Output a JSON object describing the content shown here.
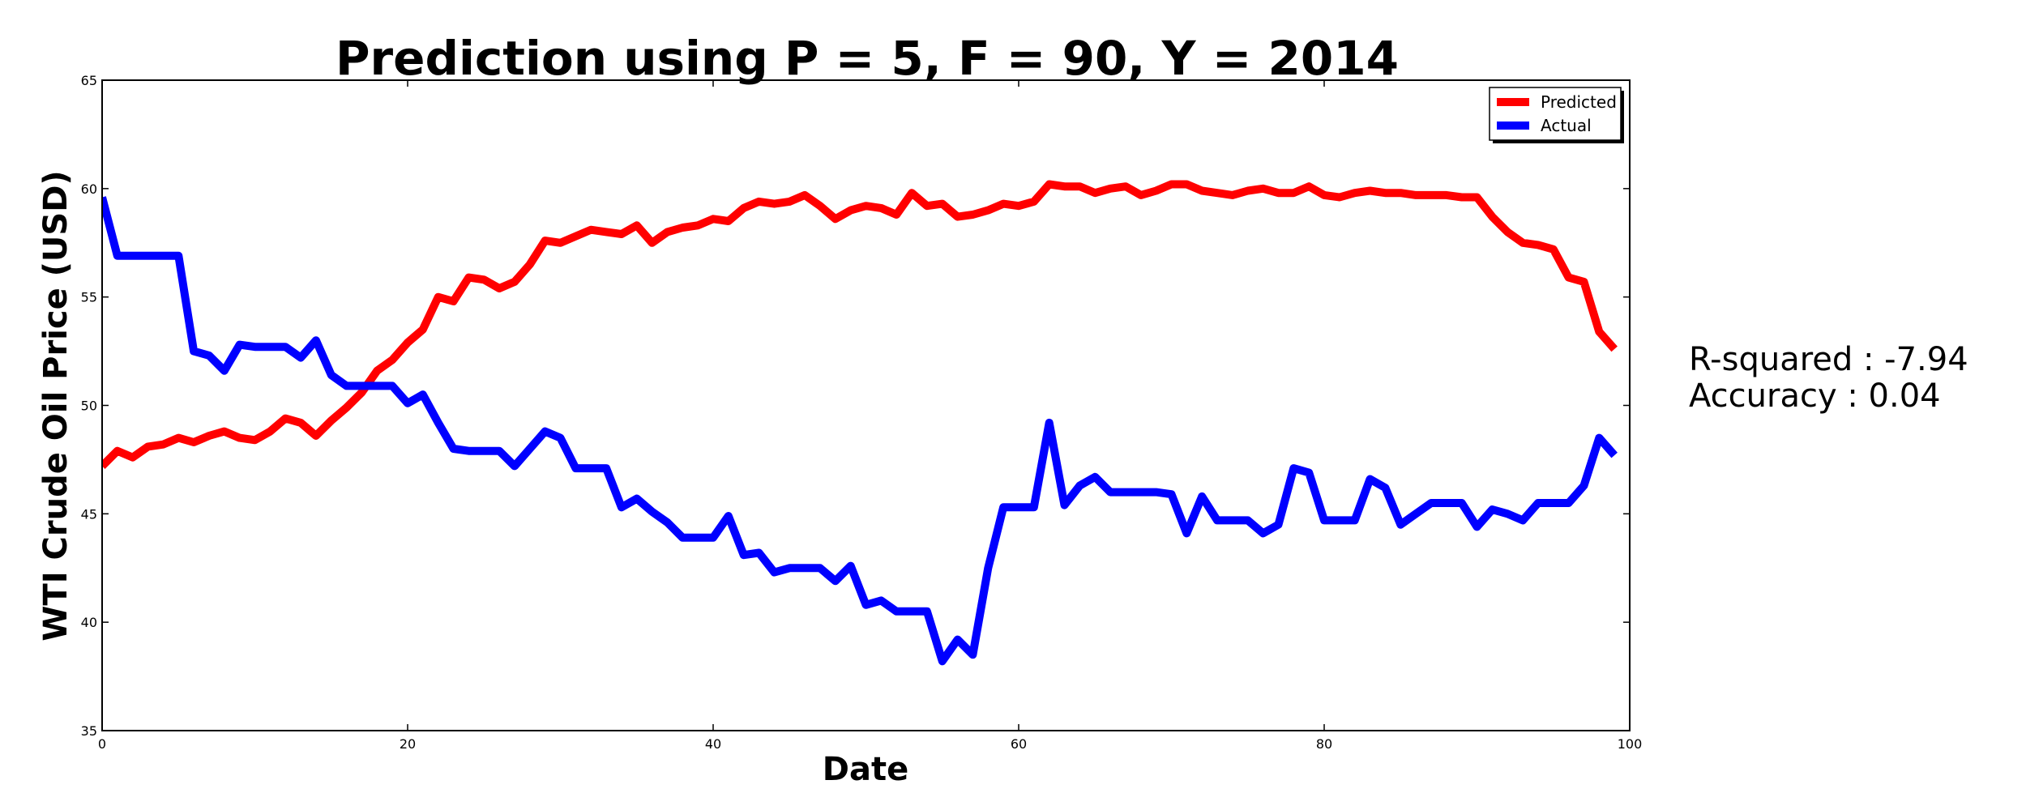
{
  "chart_data": {
    "type": "line",
    "title": "Prediction using P = 5, F = 90, Y = 2014",
    "xlabel": "Date",
    "ylabel": "WTI Crude Oil Price (USD)",
    "xlim": [
      0,
      100
    ],
    "ylim": [
      35,
      65
    ],
    "x_ticks": [
      0,
      20,
      40,
      60,
      80,
      100
    ],
    "y_ticks": [
      35,
      40,
      45,
      50,
      55,
      60,
      65
    ],
    "grid": false,
    "legend_position": "top-right",
    "series": [
      {
        "name": "Predicted",
        "color": "#ff0000",
        "x": [
          0,
          1,
          2,
          3,
          4,
          5,
          6,
          7,
          8,
          9,
          10,
          11,
          12,
          13,
          14,
          15,
          16,
          17,
          18,
          19,
          20,
          21,
          22,
          23,
          24,
          25,
          26,
          27,
          28,
          29,
          30,
          31,
          32,
          33,
          34,
          35,
          36,
          37,
          38,
          39,
          40,
          41,
          42,
          43,
          44,
          45,
          46,
          47,
          48,
          49,
          50,
          51,
          52,
          53,
          54,
          55,
          56,
          57,
          58,
          59,
          60,
          61,
          62,
          63,
          64,
          65,
          66,
          67,
          68,
          69,
          70,
          71,
          72,
          73,
          74,
          75,
          76,
          77,
          78,
          79,
          80,
          81,
          82,
          83,
          84,
          85,
          86,
          87,
          88,
          89,
          90,
          91,
          92,
          93,
          94,
          95,
          96,
          97,
          98,
          99
        ],
        "values": [
          47.2,
          47.9,
          47.6,
          48.1,
          48.2,
          48.5,
          48.3,
          48.6,
          48.8,
          48.5,
          48.4,
          48.8,
          49.4,
          49.2,
          48.6,
          49.3,
          49.9,
          50.6,
          51.6,
          52.1,
          52.9,
          53.5,
          55.0,
          54.8,
          55.9,
          55.8,
          55.4,
          55.7,
          56.5,
          57.6,
          57.5,
          57.8,
          58.1,
          58.0,
          57.9,
          58.3,
          57.5,
          58.0,
          58.2,
          58.3,
          58.6,
          58.5,
          59.1,
          59.4,
          59.3,
          59.4,
          59.7,
          59.2,
          58.6,
          59.0,
          59.2,
          59.1,
          58.8,
          59.8,
          59.2,
          59.3,
          58.7,
          58.8,
          59.0,
          59.3,
          59.2,
          59.4,
          60.2,
          60.1,
          60.1,
          59.8,
          60.0,
          60.1,
          59.7,
          59.9,
          60.2,
          60.2,
          59.9,
          59.8,
          59.7,
          59.9,
          60.0,
          59.8,
          59.8,
          60.1,
          59.7,
          59.6,
          59.8,
          59.9,
          59.8,
          59.8,
          59.7,
          59.7,
          59.7,
          59.6,
          59.6,
          58.7,
          58.0,
          57.5,
          57.4,
          57.2,
          55.9,
          55.7,
          53.4,
          52.6
        ]
      },
      {
        "name": "Actual",
        "color": "#0000ff",
        "x": [
          0,
          1,
          2,
          3,
          4,
          5,
          6,
          7,
          8,
          9,
          10,
          11,
          12,
          13,
          14,
          15,
          16,
          17,
          18,
          19,
          20,
          21,
          22,
          23,
          24,
          25,
          26,
          27,
          28,
          29,
          30,
          31,
          32,
          33,
          34,
          35,
          36,
          37,
          38,
          39,
          40,
          41,
          42,
          43,
          44,
          45,
          46,
          47,
          48,
          49,
          50,
          51,
          52,
          53,
          54,
          55,
          56,
          57,
          58,
          59,
          60,
          61,
          62,
          63,
          64,
          65,
          66,
          67,
          68,
          69,
          70,
          71,
          72,
          73,
          74,
          75,
          76,
          77,
          78,
          79,
          80,
          81,
          82,
          83,
          84,
          85,
          86,
          87,
          88,
          89,
          90,
          91,
          92,
          93,
          94,
          95,
          96,
          97,
          98,
          99
        ],
        "values": [
          59.6,
          56.9,
          56.9,
          56.9,
          56.9,
          56.9,
          52.5,
          52.3,
          51.6,
          52.8,
          52.7,
          52.7,
          52.7,
          52.2,
          53.0,
          51.4,
          50.9,
          50.9,
          50.9,
          50.9,
          50.1,
          50.5,
          49.2,
          48.0,
          47.9,
          47.9,
          47.9,
          47.2,
          48.0,
          48.8,
          48.5,
          47.1,
          47.1,
          47.1,
          45.3,
          45.7,
          45.1,
          44.6,
          43.9,
          43.9,
          43.9,
          44.9,
          43.1,
          43.2,
          42.3,
          42.5,
          42.5,
          42.5,
          41.9,
          42.6,
          40.8,
          41.0,
          40.5,
          40.5,
          40.5,
          38.2,
          39.2,
          38.5,
          42.5,
          45.3,
          45.3,
          45.3,
          49.2,
          45.4,
          46.3,
          46.7,
          46.0,
          46.0,
          46.0,
          46.0,
          45.9,
          44.1,
          45.8,
          44.7,
          44.7,
          44.7,
          44.1,
          44.5,
          47.1,
          46.9,
          44.7,
          44.7,
          44.7,
          46.6,
          46.2,
          44.5,
          45.0,
          45.5,
          45.5,
          45.5,
          44.4,
          45.2,
          45.0,
          44.7,
          45.5,
          45.5,
          45.5,
          46.3,
          48.5,
          47.7
        ]
      }
    ]
  },
  "annotations": {
    "r_squared": "R-squared : -7.94",
    "accuracy": "Accuracy : 0.04"
  }
}
